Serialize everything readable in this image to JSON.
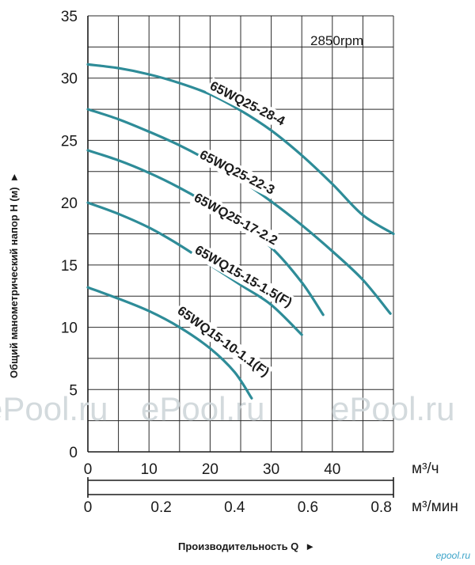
{
  "chart_data": {
    "type": "line",
    "annotation": "2850rpm",
    "ylabel": "Общий манометрический напор H (м)",
    "xlabel": "Производительность Q",
    "x_unit_primary": "м³/ч",
    "x_unit_secondary": "м³/мин",
    "xlim": [
      0,
      50
    ],
    "ylim": [
      0,
      35
    ],
    "x_ticks": [
      "0",
      "10",
      "20",
      "30",
      "40"
    ],
    "x2_ticks": [
      "0",
      "0.2",
      "0.4",
      "0.6",
      "0.8"
    ],
    "y_ticks": [
      "0",
      "5",
      "10",
      "15",
      "20",
      "25",
      "30",
      "35"
    ],
    "grid": true,
    "series": [
      {
        "name": "65WQ25-28-4",
        "x": [
          0,
          5,
          10,
          15,
          20,
          25,
          30,
          35,
          40,
          45,
          50
        ],
        "y": [
          31.1,
          30.8,
          30.3,
          29.6,
          28.7,
          27.4,
          25.8,
          23.8,
          21.5,
          19.0,
          17.5
        ]
      },
      {
        "name": "65WQ25-22-3",
        "x": [
          0,
          5,
          10,
          15,
          20,
          25,
          30,
          35,
          40,
          45,
          49.5
        ],
        "y": [
          27.5,
          26.7,
          25.7,
          24.6,
          23.3,
          21.8,
          20.1,
          18.2,
          16.1,
          13.8,
          11.1
        ]
      },
      {
        "name": "65WQ25-17-2.2",
        "x": [
          0,
          5,
          10,
          15,
          20,
          25,
          30,
          35,
          38.5
        ],
        "y": [
          24.2,
          23.4,
          22.4,
          21.2,
          19.8,
          18.2,
          16.4,
          13.6,
          11.0
        ]
      },
      {
        "name": "65WQ15-15-1.5(F)",
        "x": [
          0,
          5,
          10,
          15,
          20,
          25,
          30,
          35
        ],
        "y": [
          20.0,
          19.1,
          18.0,
          16.6,
          15.0,
          13.4,
          11.8,
          9.4
        ]
      },
      {
        "name": "65WQ15-10-1.1(F)",
        "x": [
          0,
          5,
          10,
          15,
          20,
          24,
          26.8
        ],
        "y": [
          13.2,
          12.3,
          11.3,
          10.0,
          8.3,
          6.4,
          4.3
        ]
      }
    ]
  },
  "watermarks": [
    "ePool.ru",
    "ePool.ru",
    "ePool.ru",
    "epool.ru"
  ]
}
